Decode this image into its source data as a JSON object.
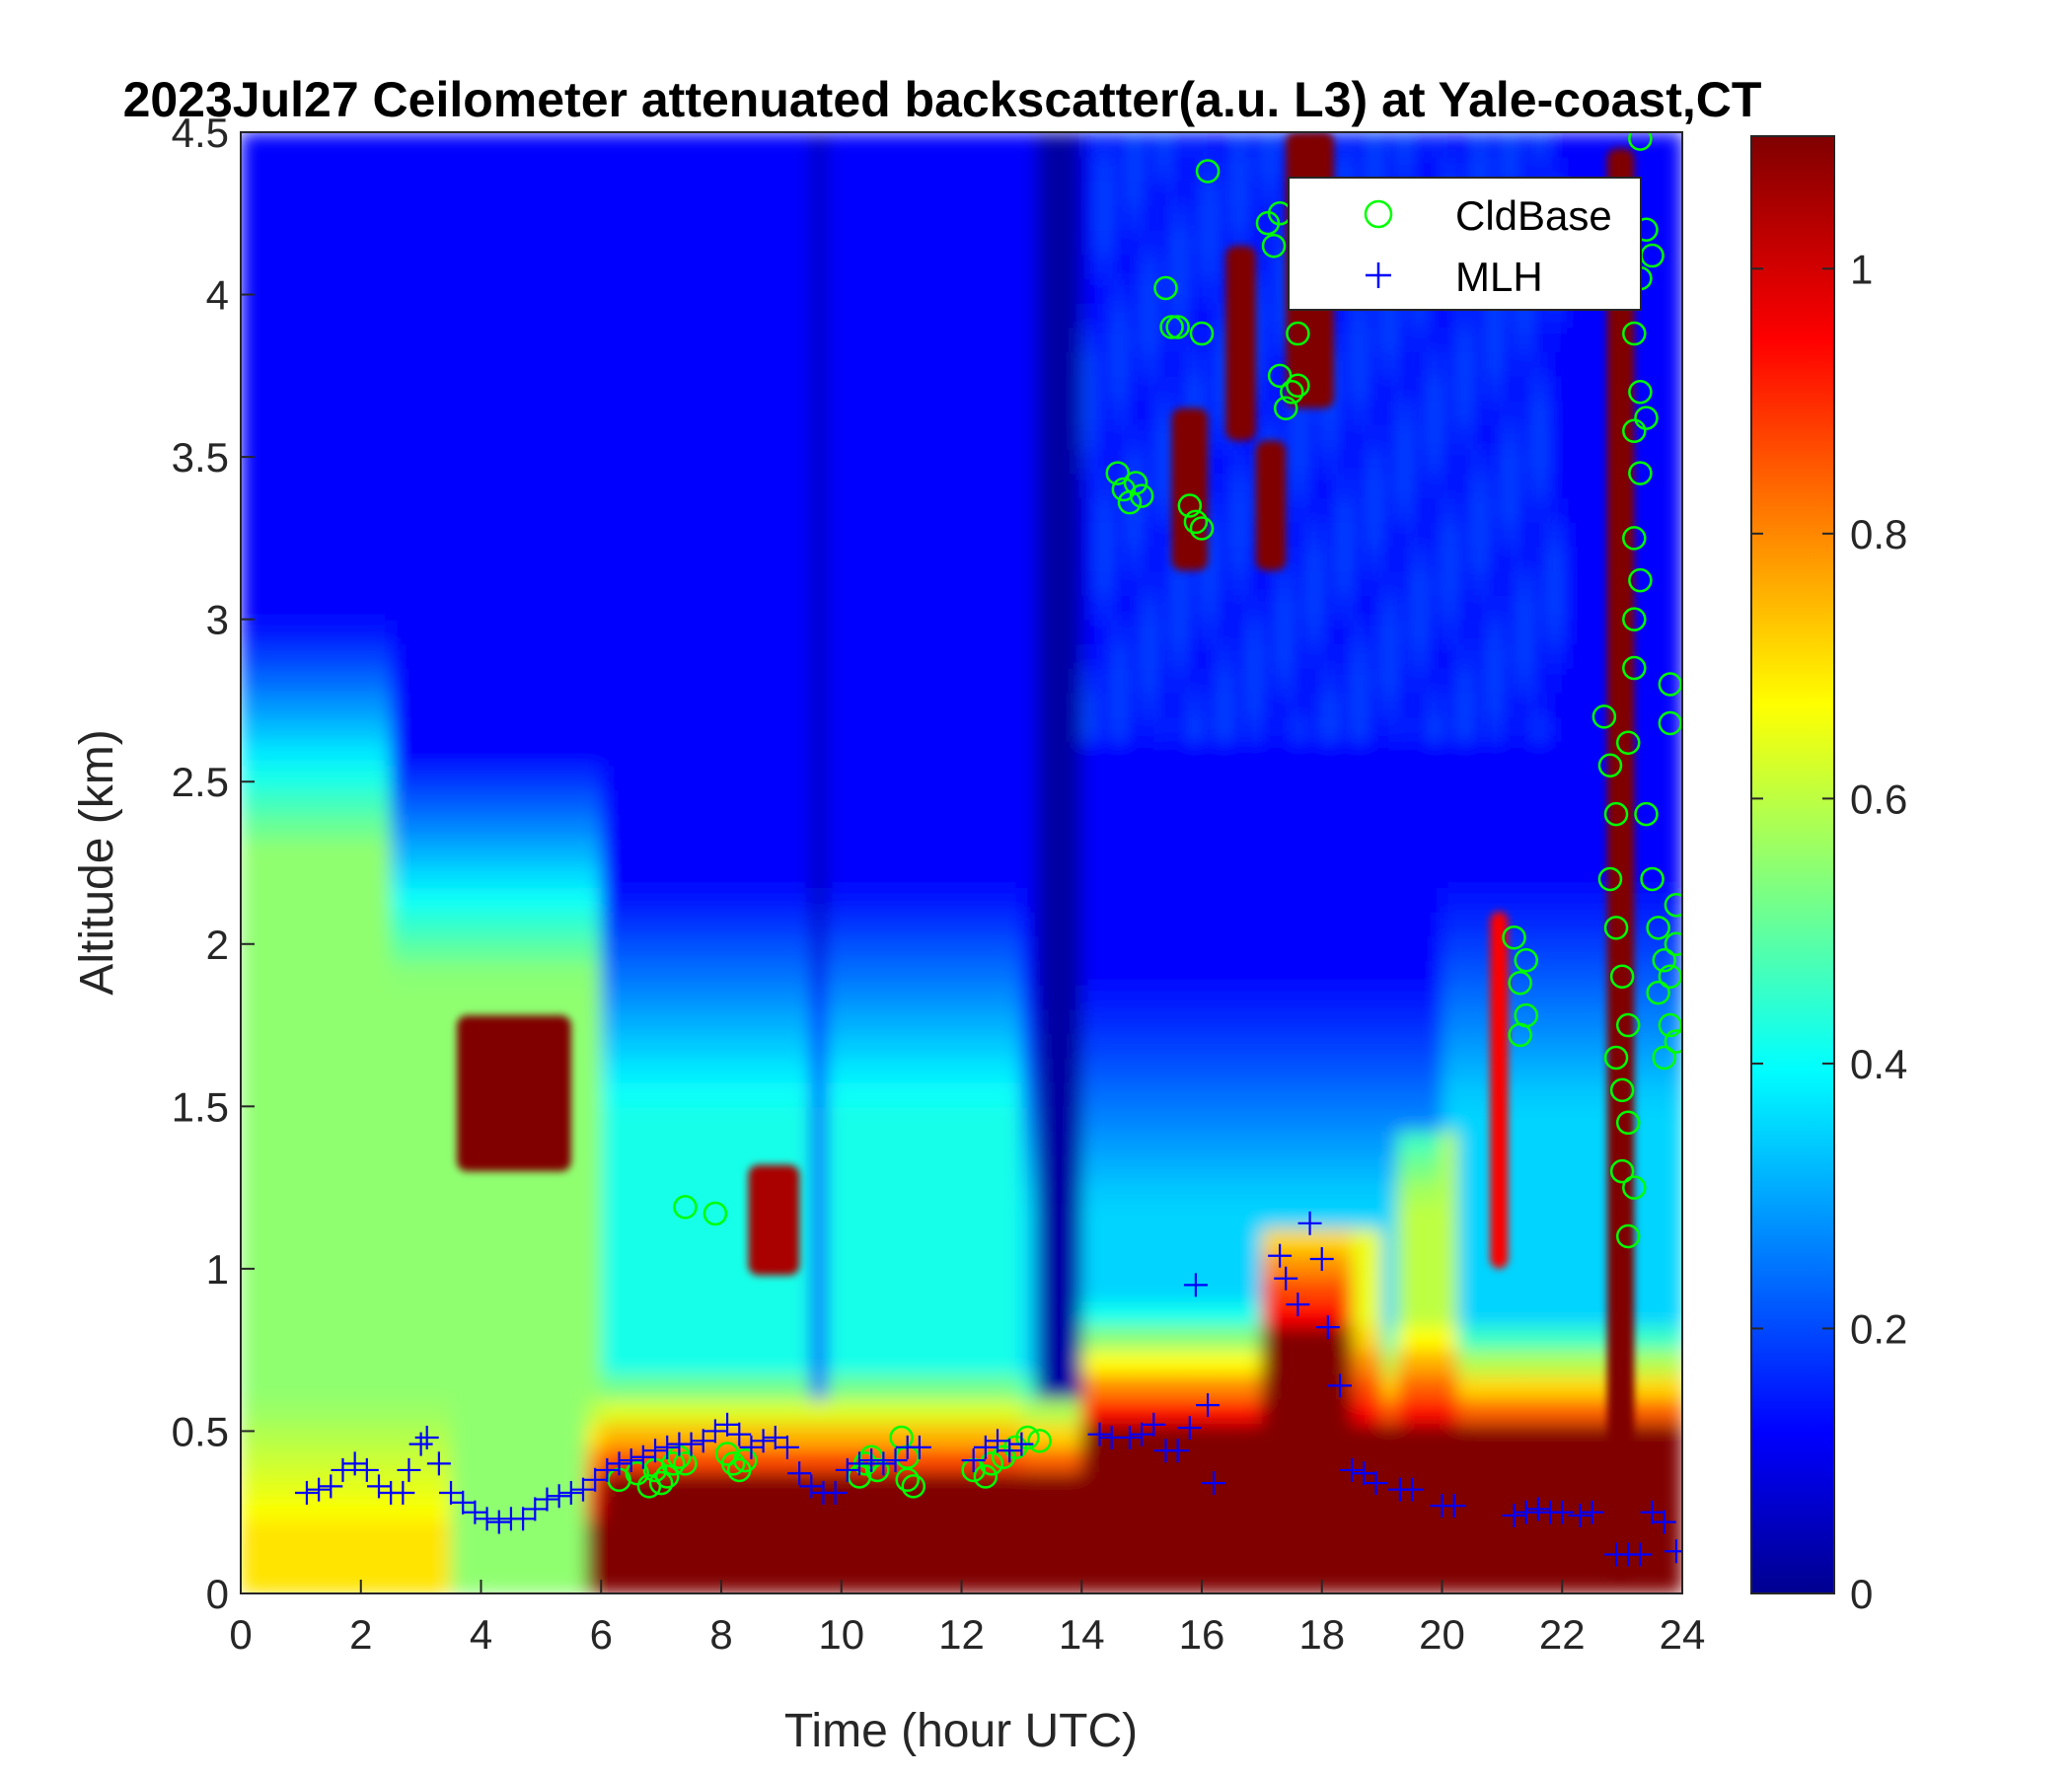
{
  "chart_data": {
    "type": "heatmap",
    "title": "2023Jul27 Ceilometer attenuated backscatter(a.u. L3) at Yale-coast,CT",
    "xlabel": "Time (hour UTC)",
    "ylabel": "Altitude (km)",
    "xlim": [
      0,
      24
    ],
    "ylim": [
      0,
      4.5
    ],
    "x_ticks": [
      0,
      2,
      4,
      6,
      8,
      10,
      12,
      14,
      16,
      18,
      20,
      22,
      24
    ],
    "y_ticks": [
      0,
      0.5,
      1,
      1.5,
      2,
      2.5,
      3,
      3.5,
      4,
      4.5
    ],
    "x_tick_labels": [
      "0",
      "2",
      "4",
      "6",
      "8",
      "10",
      "12",
      "14",
      "16",
      "18",
      "20",
      "22",
      "24"
    ],
    "y_tick_labels": [
      "0",
      "0.5",
      "1",
      "1.5",
      "2",
      "2.5",
      "3",
      "3.5",
      "4",
      "4.5"
    ],
    "colorbar": {
      "colormap": "jet",
      "range": [
        0,
        1.1
      ],
      "ticks": [
        0,
        0.2,
        0.4,
        0.6,
        0.8,
        1
      ],
      "tick_labels": [
        "0",
        "0.2",
        "0.4",
        "0.6",
        "0.8",
        "1"
      ]
    },
    "legend": {
      "location": "top-right",
      "entries": [
        {
          "label": "CldBase",
          "marker": "circle",
          "color": "#00ff00"
        },
        {
          "label": "MLH",
          "marker": "plus",
          "color": "#0000ff"
        }
      ]
    },
    "series": [
      {
        "name": "CldBase",
        "marker": "circle",
        "color": "#00ff00",
        "points": [
          [
            6.3,
            0.35
          ],
          [
            6.6,
            0.37
          ],
          [
            6.8,
            0.33
          ],
          [
            6.9,
            0.38
          ],
          [
            7.0,
            0.34
          ],
          [
            7.1,
            0.36
          ],
          [
            7.2,
            0.4
          ],
          [
            7.3,
            0.42
          ],
          [
            7.4,
            0.4
          ],
          [
            7.4,
            1.19
          ],
          [
            7.9,
            1.17
          ],
          [
            8.1,
            0.43
          ],
          [
            8.2,
            0.4
          ],
          [
            8.3,
            0.38
          ],
          [
            8.4,
            0.41
          ],
          [
            10.3,
            0.36
          ],
          [
            10.4,
            0.4
          ],
          [
            10.5,
            0.42
          ],
          [
            10.6,
            0.38
          ],
          [
            11.0,
            0.48
          ],
          [
            11.1,
            0.35
          ],
          [
            11.2,
            0.33
          ],
          [
            11.1,
            0.42
          ],
          [
            12.2,
            0.38
          ],
          [
            12.4,
            0.36
          ],
          [
            12.5,
            0.4
          ],
          [
            12.7,
            0.42
          ],
          [
            12.9,
            0.45
          ],
          [
            13.1,
            0.48
          ],
          [
            13.3,
            0.47
          ],
          [
            14.6,
            3.45
          ],
          [
            14.7,
            3.4
          ],
          [
            14.8,
            3.36
          ],
          [
            14.9,
            3.42
          ],
          [
            15.0,
            3.38
          ],
          [
            15.4,
            4.02
          ],
          [
            15.5,
            3.9
          ],
          [
            15.6,
            3.9
          ],
          [
            15.8,
            3.35
          ],
          [
            15.9,
            3.3
          ],
          [
            16.0,
            3.28
          ],
          [
            16.0,
            3.88
          ],
          [
            16.1,
            4.38
          ],
          [
            17.1,
            4.22
          ],
          [
            17.2,
            4.15
          ],
          [
            17.3,
            4.25
          ],
          [
            17.3,
            3.75
          ],
          [
            17.4,
            3.65
          ],
          [
            17.5,
            3.7
          ],
          [
            17.6,
            3.88
          ],
          [
            17.6,
            3.72
          ],
          [
            21.2,
            2.02
          ],
          [
            21.3,
            1.88
          ],
          [
            21.4,
            1.78
          ],
          [
            21.3,
            1.72
          ],
          [
            21.4,
            1.95
          ],
          [
            22.7,
            2.7
          ],
          [
            22.8,
            2.55
          ],
          [
            22.9,
            2.4
          ],
          [
            22.8,
            2.2
          ],
          [
            22.9,
            2.05
          ],
          [
            23.0,
            1.9
          ],
          [
            23.1,
            1.75
          ],
          [
            22.9,
            1.65
          ],
          [
            23.0,
            1.55
          ],
          [
            23.1,
            1.45
          ],
          [
            23.0,
            1.3
          ],
          [
            23.1,
            1.1
          ],
          [
            23.2,
            1.25
          ],
          [
            23.1,
            2.62
          ],
          [
            23.2,
            2.85
          ],
          [
            23.2,
            3.0
          ],
          [
            23.3,
            3.12
          ],
          [
            23.2,
            3.25
          ],
          [
            23.3,
            3.45
          ],
          [
            23.2,
            3.58
          ],
          [
            23.3,
            3.7
          ],
          [
            23.2,
            3.88
          ],
          [
            23.3,
            4.05
          ],
          [
            23.4,
            4.2
          ],
          [
            23.3,
            4.48
          ],
          [
            23.4,
            2.4
          ],
          [
            23.5,
            2.2
          ],
          [
            23.6,
            2.05
          ],
          [
            23.7,
            1.95
          ],
          [
            23.6,
            1.85
          ],
          [
            23.8,
            1.75
          ],
          [
            23.7,
            1.65
          ],
          [
            23.9,
            1.7
          ],
          [
            23.8,
            1.9
          ],
          [
            23.9,
            2.0
          ],
          [
            23.9,
            2.12
          ],
          [
            23.8,
            2.8
          ],
          [
            23.8,
            2.68
          ],
          [
            23.5,
            4.12
          ],
          [
            23.4,
            3.62
          ]
        ]
      },
      {
        "name": "MLH",
        "marker": "plus",
        "color": "#0000ff",
        "points": [
          [
            1.1,
            0.31
          ],
          [
            1.3,
            0.32
          ],
          [
            1.5,
            0.33
          ],
          [
            1.7,
            0.38
          ],
          [
            1.9,
            0.4
          ],
          [
            2.1,
            0.38
          ],
          [
            2.3,
            0.33
          ],
          [
            2.5,
            0.31
          ],
          [
            2.7,
            0.31
          ],
          [
            2.8,
            0.38
          ],
          [
            3.0,
            0.46
          ],
          [
            3.1,
            0.48
          ],
          [
            3.3,
            0.4
          ],
          [
            3.5,
            0.31
          ],
          [
            3.7,
            0.28
          ],
          [
            3.9,
            0.25
          ],
          [
            4.1,
            0.23
          ],
          [
            4.3,
            0.22
          ],
          [
            4.5,
            0.23
          ],
          [
            4.7,
            0.23
          ],
          [
            4.9,
            0.26
          ],
          [
            5.1,
            0.29
          ],
          [
            5.3,
            0.3
          ],
          [
            5.5,
            0.31
          ],
          [
            5.7,
            0.32
          ],
          [
            5.9,
            0.35
          ],
          [
            6.1,
            0.38
          ],
          [
            6.3,
            0.4
          ],
          [
            6.5,
            0.41
          ],
          [
            6.7,
            0.42
          ],
          [
            6.9,
            0.44
          ],
          [
            7.1,
            0.45
          ],
          [
            7.3,
            0.46
          ],
          [
            7.5,
            0.46
          ],
          [
            7.7,
            0.47
          ],
          [
            7.9,
            0.5
          ],
          [
            8.1,
            0.52
          ],
          [
            8.3,
            0.49
          ],
          [
            8.5,
            0.45
          ],
          [
            8.7,
            0.47
          ],
          [
            8.9,
            0.48
          ],
          [
            9.1,
            0.45
          ],
          [
            9.3,
            0.37
          ],
          [
            9.5,
            0.33
          ],
          [
            9.7,
            0.31
          ],
          [
            9.9,
            0.31
          ],
          [
            10.1,
            0.38
          ],
          [
            10.3,
            0.4
          ],
          [
            10.5,
            0.41
          ],
          [
            10.7,
            0.4
          ],
          [
            10.9,
            0.41
          ],
          [
            11.1,
            0.45
          ],
          [
            11.3,
            0.45
          ],
          [
            12.2,
            0.41
          ],
          [
            12.4,
            0.45
          ],
          [
            12.6,
            0.47
          ],
          [
            12.8,
            0.44
          ],
          [
            13.0,
            0.46
          ],
          [
            14.3,
            0.49
          ],
          [
            14.5,
            0.48
          ],
          [
            14.8,
            0.48
          ],
          [
            15.0,
            0.49
          ],
          [
            15.2,
            0.52
          ],
          [
            15.4,
            0.44
          ],
          [
            15.6,
            0.44
          ],
          [
            15.8,
            0.51
          ],
          [
            15.9,
            0.95
          ],
          [
            16.1,
            0.58
          ],
          [
            16.2,
            0.34
          ],
          [
            17.3,
            1.04
          ],
          [
            17.4,
            0.97
          ],
          [
            17.6,
            0.89
          ],
          [
            17.8,
            1.14
          ],
          [
            18.0,
            1.03
          ],
          [
            18.1,
            0.82
          ],
          [
            18.3,
            0.64
          ],
          [
            18.5,
            0.38
          ],
          [
            18.7,
            0.37
          ],
          [
            18.9,
            0.34
          ],
          [
            19.3,
            0.32
          ],
          [
            19.5,
            0.32
          ],
          [
            20.0,
            0.27
          ],
          [
            20.2,
            0.27
          ],
          [
            21.2,
            0.24
          ],
          [
            21.4,
            0.25
          ],
          [
            21.6,
            0.26
          ],
          [
            21.8,
            0.25
          ],
          [
            22.0,
            0.25
          ],
          [
            22.3,
            0.24
          ],
          [
            22.5,
            0.25
          ],
          [
            22.9,
            0.12
          ],
          [
            23.1,
            0.12
          ],
          [
            23.3,
            0.12
          ],
          [
            23.5,
            0.25
          ],
          [
            23.7,
            0.22
          ],
          [
            23.9,
            0.13
          ]
        ]
      }
    ],
    "cloud_patches": [
      {
        "t0": 3.6,
        "t1": 5.5,
        "z0": 1.3,
        "z1": 1.78,
        "value": 1.1
      },
      {
        "t0": 8.45,
        "t1": 9.3,
        "z0": 0.98,
        "z1": 1.32,
        "value": 1.05
      },
      {
        "t0": 15.5,
        "t1": 16.1,
        "z0": 3.15,
        "z1": 3.65,
        "value": 1.1
      },
      {
        "t0": 16.4,
        "t1": 16.9,
        "z0": 3.55,
        "z1": 4.15,
        "value": 1.1
      },
      {
        "t0": 16.9,
        "t1": 17.4,
        "z0": 3.15,
        "z1": 3.55,
        "value": 1.1
      },
      {
        "t0": 17.4,
        "t1": 18.2,
        "z0": 3.65,
        "z1": 4.5,
        "value": 1.1
      },
      {
        "t0": 20.8,
        "t1": 21.1,
        "z0": 1.0,
        "z1": 2.1,
        "value": 0.95
      },
      {
        "t0": 22.75,
        "t1": 23.2,
        "z0": 0.05,
        "z1": 4.45,
        "value": 1.1
      }
    ]
  }
}
